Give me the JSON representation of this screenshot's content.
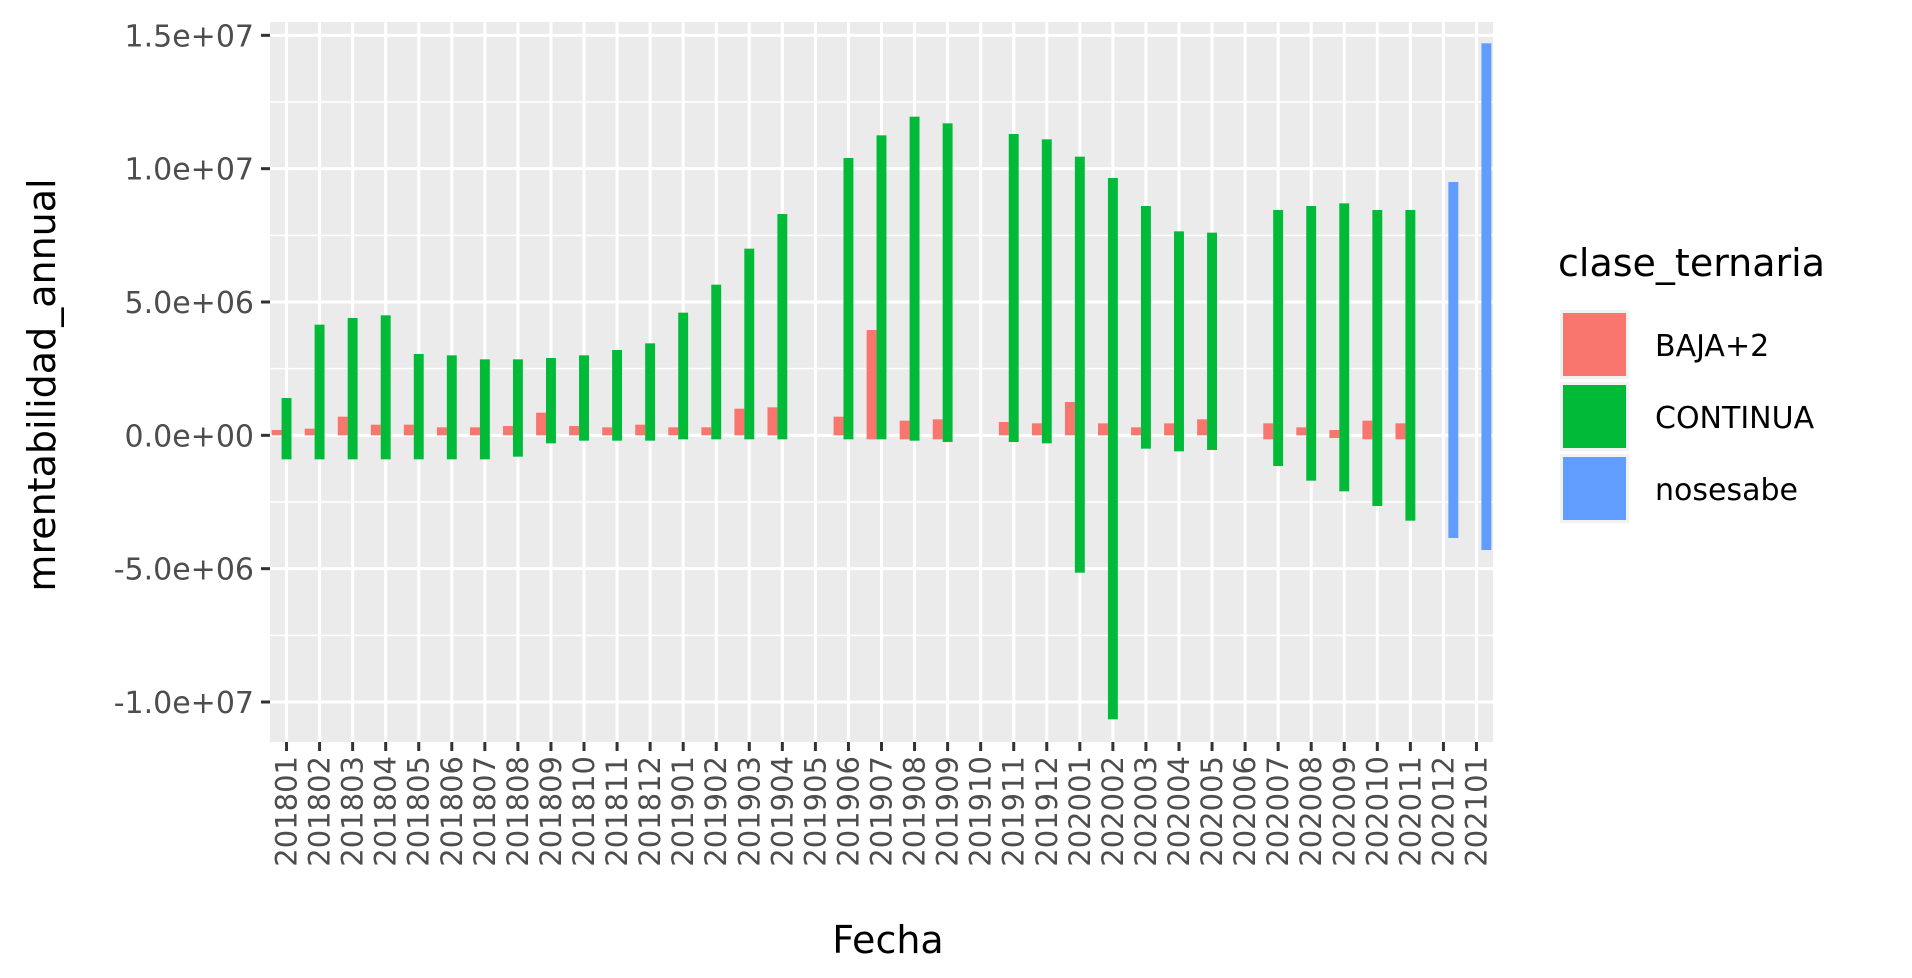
{
  "chart_data": {
    "type": "bar",
    "xlabel": "Fecha",
    "ylabel": "mrentabilidad_annual",
    "ylim": [
      -11500000,
      15500000
    ],
    "y_ticks": [
      -10000000,
      -5000000,
      0,
      5000000,
      10000000,
      15000000
    ],
    "y_tick_labels": [
      "-1.0e+07",
      "-5.0e+06",
      "0.0e+00",
      "5.0e+06",
      "1.0e+07",
      "1.5e+07"
    ],
    "grid": true,
    "legend_position": "right",
    "legend_title": "clase_ternaria",
    "categories": [
      "201801",
      "201802",
      "201803",
      "201804",
      "201805",
      "201806",
      "201807",
      "201808",
      "201809",
      "201810",
      "201811",
      "201812",
      "201901",
      "201902",
      "201903",
      "201904",
      "201905",
      "201906",
      "201907",
      "201908",
      "201909",
      "201910",
      "201911",
      "201912",
      "202001",
      "202002",
      "202003",
      "202004",
      "202005",
      "202006",
      "202007",
      "202008",
      "202009",
      "202010",
      "202011",
      "202012",
      "202101"
    ],
    "series": [
      {
        "name": "BAJA+2",
        "color": "#F8766D",
        "values": [
          [
            0,
            200000
          ],
          [
            0,
            250000
          ],
          [
            0,
            700000
          ],
          [
            0,
            400000
          ],
          [
            0,
            400000
          ],
          [
            0,
            300000
          ],
          [
            0,
            300000
          ],
          [
            0,
            350000
          ],
          [
            0,
            850000
          ],
          [
            0,
            350000
          ],
          [
            0,
            300000
          ],
          [
            0,
            400000
          ],
          [
            0,
            300000
          ],
          [
            0,
            300000
          ],
          [
            0,
            1000000
          ],
          [
            0,
            1050000
          ],
          null,
          [
            0,
            700000
          ],
          [
            -150000,
            3950000
          ],
          [
            -150000,
            550000
          ],
          [
            -150000,
            600000
          ],
          null,
          [
            0,
            500000
          ],
          [
            0,
            450000
          ],
          [
            0,
            1250000
          ],
          [
            0,
            450000
          ],
          [
            0,
            300000
          ],
          [
            0,
            450000
          ],
          [
            0,
            600000
          ],
          null,
          [
            -150000,
            450000
          ],
          [
            0,
            300000
          ],
          [
            -100000,
            200000
          ],
          [
            -150000,
            550000
          ],
          [
            -150000,
            450000
          ],
          null,
          null
        ]
      },
      {
        "name": "CONTINUA",
        "color": "#00BA38",
        "values": [
          [
            -900000,
            1400000
          ],
          [
            -900000,
            4150000
          ],
          [
            -900000,
            4400000
          ],
          [
            -900000,
            4500000
          ],
          [
            -900000,
            3050000
          ],
          [
            -900000,
            3000000
          ],
          [
            -900000,
            2850000
          ],
          [
            -800000,
            2850000
          ],
          [
            -300000,
            2900000
          ],
          [
            -200000,
            3000000
          ],
          [
            -200000,
            3200000
          ],
          [
            -200000,
            3450000
          ],
          [
            -150000,
            4600000
          ],
          [
            -150000,
            5650000
          ],
          [
            -150000,
            7000000
          ],
          [
            -150000,
            8300000
          ],
          null,
          [
            -150000,
            10400000
          ],
          [
            -150000,
            11250000
          ],
          [
            -200000,
            11950000
          ],
          [
            -250000,
            11700000
          ],
          null,
          [
            -250000,
            11300000
          ],
          [
            -300000,
            11100000
          ],
          [
            -5150000,
            10450000
          ],
          [
            -10650000,
            9650000
          ],
          [
            -500000,
            8600000
          ],
          [
            -600000,
            7650000
          ],
          [
            -550000,
            7600000
          ],
          null,
          [
            -1150000,
            8450000
          ],
          [
            -1700000,
            8600000
          ],
          [
            -2100000,
            8700000
          ],
          [
            -2650000,
            8450000
          ],
          [
            -3200000,
            8450000
          ],
          null,
          null
        ]
      },
      {
        "name": "nosesabe",
        "color": "#619CFF",
        "values": [
          null,
          null,
          null,
          null,
          null,
          null,
          null,
          null,
          null,
          null,
          null,
          null,
          null,
          null,
          null,
          null,
          null,
          null,
          null,
          null,
          null,
          null,
          null,
          null,
          null,
          null,
          null,
          null,
          null,
          null,
          null,
          null,
          null,
          null,
          null,
          [
            -3850000,
            9500000
          ],
          [
            -4300000,
            14700000
          ]
        ]
      }
    ]
  }
}
